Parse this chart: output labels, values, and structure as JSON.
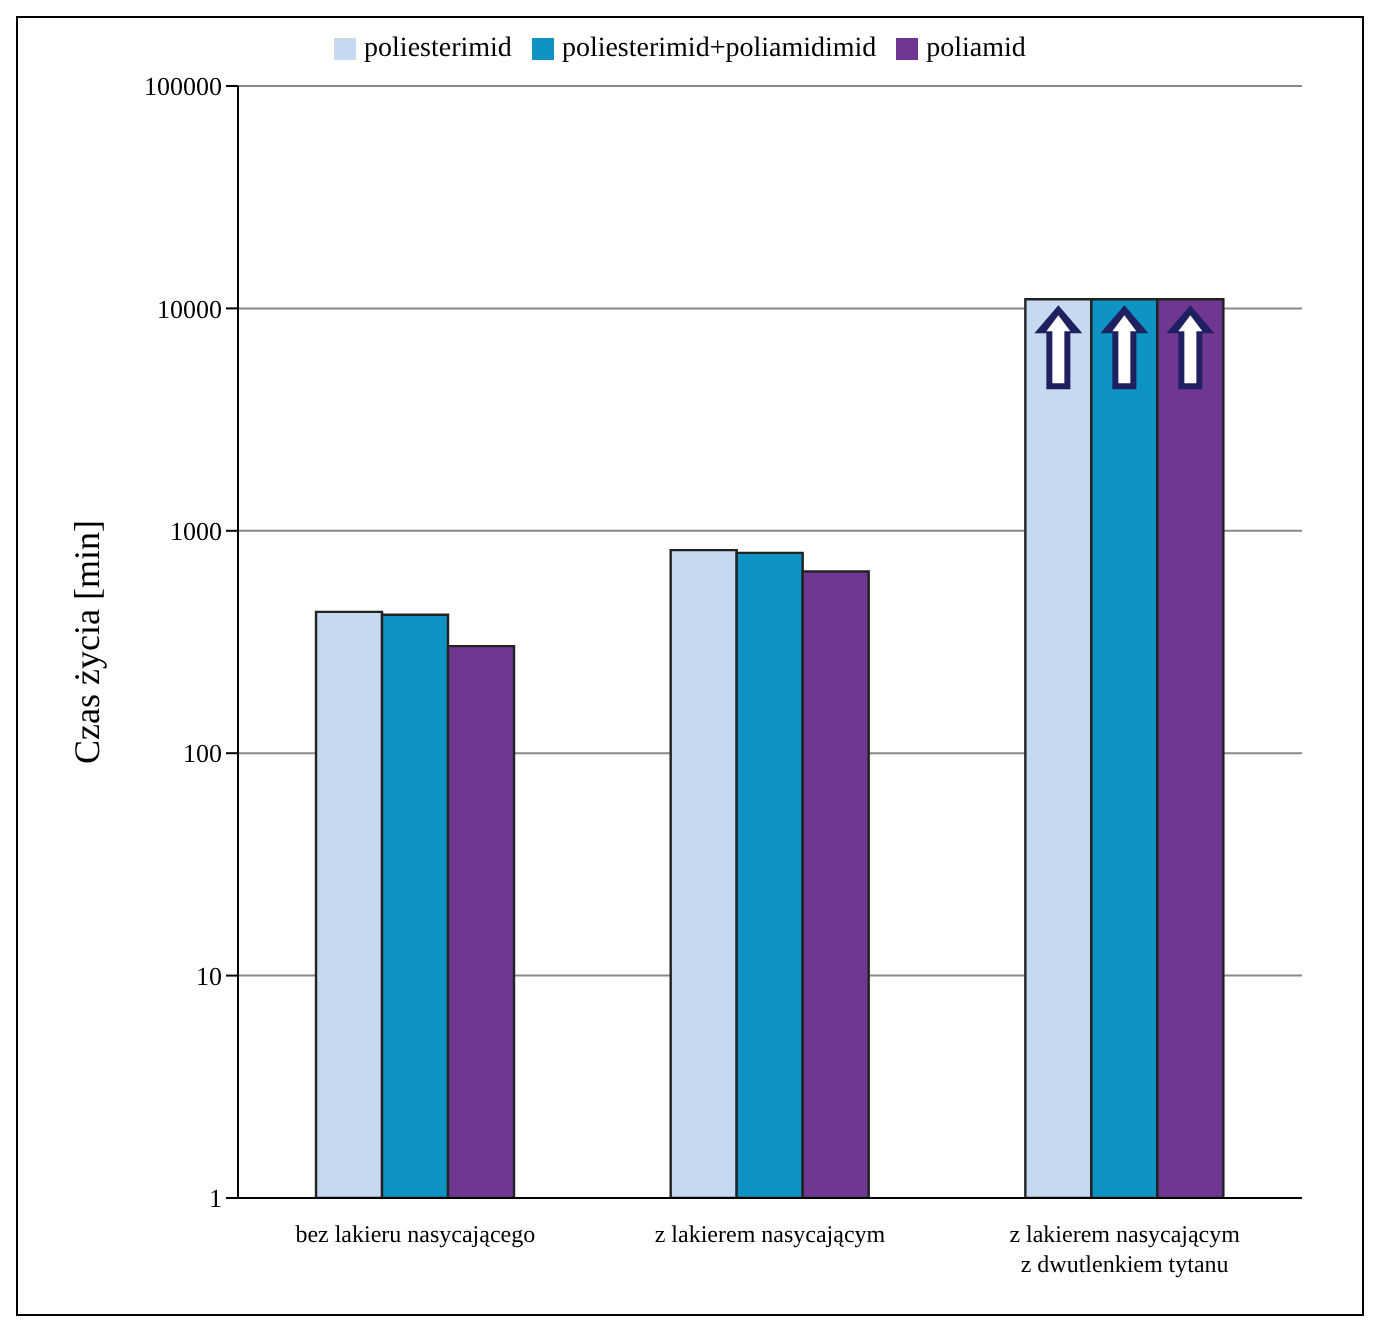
{
  "chart_data": {
    "type": "bar",
    "ylabel": "Czas życia [min]",
    "categories": [
      "bez lakieru nasycającego",
      "z lakierem nasycającym",
      "z lakierem nasycającym\nz dwutlenkiem tytanu"
    ],
    "series": [
      {
        "name": "poliesterimid",
        "color": "#c6d9f1",
        "values": [
          432,
          819,
          11000
        ]
      },
      {
        "name": "poliesterimid+poliamidimid",
        "color": "#0e93c3",
        "values": [
          419,
          796,
          11000
        ]
      },
      {
        "name": "poliamid",
        "color": "#6f3792",
        "values": [
          303,
          656,
          11000
        ]
      }
    ],
    "log": true,
    "ylim": [
      1,
      100000
    ],
    "yticks": [
      1,
      10,
      100,
      1000,
      10000,
      100000
    ],
    "grid": "y",
    "legend": "top"
  }
}
